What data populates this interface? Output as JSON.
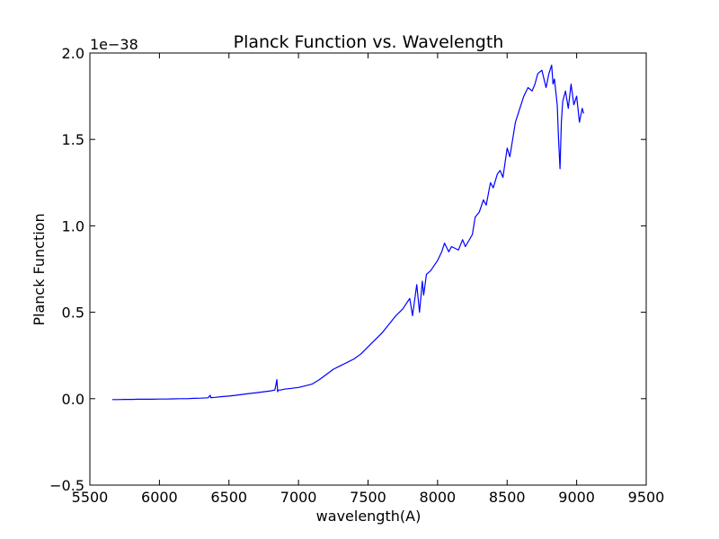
{
  "chart_data": {
    "type": "line",
    "title": "Planck Function vs. Wavelength",
    "xlabel": "wavelength(A)",
    "ylabel": "Planck Function",
    "offset_text": "1e−38",
    "scale_exponent": -38,
    "xlim": [
      5500,
      9500
    ],
    "ylim": [
      -0.5,
      2.0
    ],
    "xticks": [
      5500,
      6000,
      6500,
      7000,
      7500,
      8000,
      8500,
      9000,
      9500
    ],
    "xtick_labels": [
      "5500",
      "6000",
      "6500",
      "7000",
      "7500",
      "8000",
      "8500",
      "9000",
      "9500"
    ],
    "yticks": [
      -0.5,
      0.0,
      0.5,
      1.0,
      1.5,
      2.0
    ],
    "ytick_labels": [
      "−0.5",
      "0.0",
      "0.5",
      "1.0",
      "1.5",
      "2.0"
    ],
    "grid": false,
    "series": [
      {
        "color": "#0000ff",
        "x": [
          5660,
          5700,
          5750,
          5800,
          5850,
          5900,
          5950,
          6000,
          6050,
          6100,
          6150,
          6200,
          6250,
          6300,
          6350,
          6365,
          6370,
          6375,
          6400,
          6450,
          6500,
          6550,
          6600,
          6650,
          6700,
          6750,
          6800,
          6830,
          6845,
          6850,
          6855,
          6870,
          6900,
          6950,
          7000,
          7050,
          7100,
          7150,
          7200,
          7250,
          7300,
          7350,
          7400,
          7450,
          7500,
          7550,
          7600,
          7650,
          7700,
          7750,
          7800,
          7820,
          7850,
          7870,
          7890,
          7900,
          7920,
          7950,
          8000,
          8030,
          8050,
          8080,
          8100,
          8150,
          8180,
          8200,
          8250,
          8270,
          8300,
          8330,
          8350,
          8380,
          8400,
          8430,
          8450,
          8470,
          8500,
          8520,
          8540,
          8560,
          8580,
          8600,
          8620,
          8650,
          8680,
          8700,
          8720,
          8750,
          8780,
          8800,
          8820,
          8830,
          8840,
          8860,
          8870,
          8880,
          8890,
          8900,
          8920,
          8940,
          8960,
          8980,
          9000,
          9020,
          9040,
          9050
        ],
        "y": [
          -0.005,
          -0.005,
          -0.004,
          -0.004,
          -0.003,
          -0.003,
          -0.003,
          -0.002,
          -0.002,
          -0.001,
          0.0,
          0.0,
          0.002,
          0.003,
          0.005,
          0.02,
          0.005,
          0.006,
          0.008,
          0.012,
          0.015,
          0.02,
          0.025,
          0.03,
          0.035,
          0.04,
          0.045,
          0.05,
          0.11,
          0.04,
          0.05,
          0.05,
          0.055,
          0.06,
          0.065,
          0.075,
          0.085,
          0.11,
          0.14,
          0.17,
          0.19,
          0.21,
          0.23,
          0.26,
          0.3,
          0.34,
          0.38,
          0.43,
          0.48,
          0.52,
          0.58,
          0.48,
          0.66,
          0.5,
          0.68,
          0.6,
          0.72,
          0.74,
          0.8,
          0.85,
          0.9,
          0.85,
          0.88,
          0.86,
          0.92,
          0.88,
          0.95,
          1.05,
          1.08,
          1.15,
          1.12,
          1.25,
          1.22,
          1.3,
          1.32,
          1.28,
          1.45,
          1.4,
          1.5,
          1.6,
          1.65,
          1.7,
          1.75,
          1.8,
          1.78,
          1.82,
          1.88,
          1.9,
          1.8,
          1.88,
          1.93,
          1.82,
          1.85,
          1.7,
          1.5,
          1.33,
          1.6,
          1.72,
          1.78,
          1.68,
          1.82,
          1.7,
          1.75,
          1.6,
          1.68,
          1.65
        ]
      }
    ]
  }
}
